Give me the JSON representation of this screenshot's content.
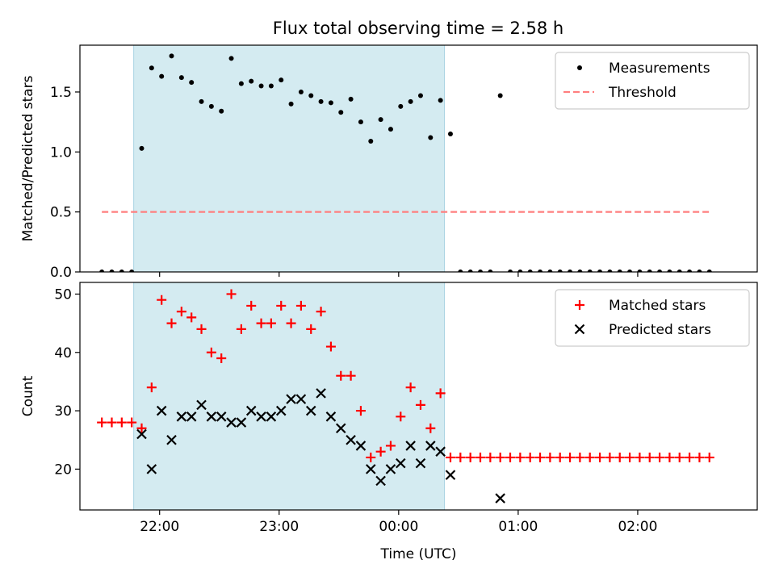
{
  "title": "Flux total observing time = 2.58 h",
  "colors": {
    "measurement": "#000000",
    "threshold": "#ff7f7f",
    "matched": "#ff0000",
    "predicted": "#000000",
    "span_fill": "#d4ebf1",
    "span_edge": "#a8d2e2"
  },
  "chart_data": [
    {
      "type": "scatter",
      "ylabel": "Matched/Predicted stars",
      "ylim": [
        0,
        1.89
      ],
      "yticks": [
        0.0,
        0.5,
        1.0,
        1.5
      ],
      "ytick_labels": [
        "0.0",
        "0.5",
        "1.0",
        "1.5"
      ],
      "xlim": [
        "21:20",
        "03:00"
      ],
      "xticks": [
        "22:00",
        "23:00",
        "00:00",
        "01:00",
        "02:00"
      ],
      "tick_labels_visible": false,
      "grid": false,
      "legend_position": "upper right",
      "legend": [
        "Measurements",
        "Threshold"
      ],
      "observing_span": [
        "21:47",
        "00:23"
      ],
      "threshold": {
        "value": 0.5,
        "x_range": [
          "21:31",
          "02:36"
        ]
      },
      "series": [
        {
          "name": "Measurements",
          "marker": "dot",
          "points": [
            [
              "21:31",
              0
            ],
            [
              "21:36",
              0
            ],
            [
              "21:41",
              0
            ],
            [
              "21:46",
              0
            ],
            [
              "21:51",
              1.03
            ],
            [
              "21:56",
              1.7
            ],
            [
              "22:01",
              1.63
            ],
            [
              "22:06",
              1.8
            ],
            [
              "22:11",
              1.62
            ],
            [
              "22:16",
              1.58
            ],
            [
              "22:21",
              1.42
            ],
            [
              "22:26",
              1.38
            ],
            [
              "22:31",
              1.34
            ],
            [
              "22:36",
              1.78
            ],
            [
              "22:41",
              1.57
            ],
            [
              "22:46",
              1.59
            ],
            [
              "22:51",
              1.55
            ],
            [
              "22:56",
              1.55
            ],
            [
              "23:01",
              1.6
            ],
            [
              "23:06",
              1.4
            ],
            [
              "23:11",
              1.5
            ],
            [
              "23:16",
              1.47
            ],
            [
              "23:21",
              1.42
            ],
            [
              "23:26",
              1.41
            ],
            [
              "23:31",
              1.33
            ],
            [
              "23:36",
              1.44
            ],
            [
              "23:41",
              1.25
            ],
            [
              "23:46",
              1.09
            ],
            [
              "23:51",
              1.27
            ],
            [
              "23:56",
              1.19
            ],
            [
              "00:01",
              1.38
            ],
            [
              "00:06",
              1.42
            ],
            [
              "00:11",
              1.47
            ],
            [
              "00:16",
              1.12
            ],
            [
              "00:21",
              1.43
            ],
            [
              "00:26",
              1.15
            ],
            [
              "00:31",
              0
            ],
            [
              "00:36",
              0
            ],
            [
              "00:41",
              0
            ],
            [
              "00:46",
              0
            ],
            [
              "00:51",
              1.47
            ],
            [
              "00:56",
              0
            ],
            [
              "01:01",
              0
            ],
            [
              "01:06",
              0
            ],
            [
              "01:11",
              0
            ],
            [
              "01:16",
              0
            ],
            [
              "01:21",
              0
            ],
            [
              "01:26",
              0
            ],
            [
              "01:31",
              0
            ],
            [
              "01:36",
              0
            ],
            [
              "01:41",
              0
            ],
            [
              "01:46",
              0
            ],
            [
              "01:51",
              0
            ],
            [
              "01:56",
              0
            ],
            [
              "02:01",
              0
            ],
            [
              "02:06",
              0
            ],
            [
              "02:11",
              0
            ],
            [
              "02:16",
              0
            ],
            [
              "02:21",
              0
            ],
            [
              "02:26",
              0
            ],
            [
              "02:31",
              0
            ],
            [
              "02:36",
              0
            ]
          ]
        }
      ]
    },
    {
      "type": "scatter",
      "xlabel": "Time (UTC)",
      "ylabel": "Count",
      "ylim": [
        13,
        52
      ],
      "yticks": [
        20,
        30,
        40,
        50
      ],
      "ytick_labels": [
        "20",
        "30",
        "40",
        "50"
      ],
      "xlim": [
        "21:20",
        "03:00"
      ],
      "xticks": [
        "22:00",
        "23:00",
        "00:00",
        "01:00",
        "02:00"
      ],
      "xtick_labels": [
        "22:00",
        "23:00",
        "00:00",
        "01:00",
        "02:00"
      ],
      "grid": false,
      "legend_position": "upper right",
      "legend": [
        "Matched stars",
        "Predicted stars"
      ],
      "observing_span": [
        "21:47",
        "00:23"
      ],
      "series": [
        {
          "name": "Matched stars",
          "marker": "plus",
          "points": [
            [
              "21:31",
              28
            ],
            [
              "21:36",
              28
            ],
            [
              "21:41",
              28
            ],
            [
              "21:46",
              28
            ],
            [
              "21:51",
              27
            ],
            [
              "21:56",
              34
            ],
            [
              "22:01",
              49
            ],
            [
              "22:06",
              45
            ],
            [
              "22:11",
              47
            ],
            [
              "22:16",
              46
            ],
            [
              "22:21",
              44
            ],
            [
              "22:26",
              40
            ],
            [
              "22:31",
              39
            ],
            [
              "22:36",
              50
            ],
            [
              "22:41",
              44
            ],
            [
              "22:46",
              48
            ],
            [
              "22:51",
              45
            ],
            [
              "22:56",
              45
            ],
            [
              "23:01",
              48
            ],
            [
              "23:06",
              45
            ],
            [
              "23:11",
              48
            ],
            [
              "23:16",
              44
            ],
            [
              "23:21",
              47
            ],
            [
              "23:26",
              41
            ],
            [
              "23:31",
              36
            ],
            [
              "23:36",
              36
            ],
            [
              "23:41",
              30
            ],
            [
              "23:46",
              22
            ],
            [
              "23:51",
              23
            ],
            [
              "23:56",
              24
            ],
            [
              "00:01",
              29
            ],
            [
              "00:06",
              34
            ],
            [
              "00:11",
              31
            ],
            [
              "00:16",
              27
            ],
            [
              "00:21",
              33
            ],
            [
              "00:26",
              22
            ],
            [
              "00:31",
              22
            ],
            [
              "00:36",
              22
            ],
            [
              "00:41",
              22
            ],
            [
              "00:46",
              22
            ],
            [
              "00:51",
              22
            ],
            [
              "00:56",
              22
            ],
            [
              "01:01",
              22
            ],
            [
              "01:06",
              22
            ],
            [
              "01:11",
              22
            ],
            [
              "01:16",
              22
            ],
            [
              "01:21",
              22
            ],
            [
              "01:26",
              22
            ],
            [
              "01:31",
              22
            ],
            [
              "01:36",
              22
            ],
            [
              "01:41",
              22
            ],
            [
              "01:46",
              22
            ],
            [
              "01:51",
              22
            ],
            [
              "01:56",
              22
            ],
            [
              "02:01",
              22
            ],
            [
              "02:06",
              22
            ],
            [
              "02:11",
              22
            ],
            [
              "02:16",
              22
            ],
            [
              "02:21",
              22
            ],
            [
              "02:26",
              22
            ],
            [
              "02:31",
              22
            ],
            [
              "02:36",
              22
            ]
          ]
        },
        {
          "name": "Predicted stars",
          "marker": "x",
          "points": [
            [
              "21:51",
              26
            ],
            [
              "21:56",
              20
            ],
            [
              "22:01",
              30
            ],
            [
              "22:06",
              25
            ],
            [
              "22:11",
              29
            ],
            [
              "22:16",
              29
            ],
            [
              "22:21",
              31
            ],
            [
              "22:26",
              29
            ],
            [
              "22:31",
              29
            ],
            [
              "22:36",
              28
            ],
            [
              "22:41",
              28
            ],
            [
              "22:46",
              30
            ],
            [
              "22:51",
              29
            ],
            [
              "22:56",
              29
            ],
            [
              "23:01",
              30
            ],
            [
              "23:06",
              32
            ],
            [
              "23:11",
              32
            ],
            [
              "23:16",
              30
            ],
            [
              "23:21",
              33
            ],
            [
              "23:26",
              29
            ],
            [
              "23:31",
              27
            ],
            [
              "23:36",
              25
            ],
            [
              "23:41",
              24
            ],
            [
              "23:46",
              20
            ],
            [
              "23:51",
              18
            ],
            [
              "23:56",
              20
            ],
            [
              "00:01",
              21
            ],
            [
              "00:06",
              24
            ],
            [
              "00:11",
              21
            ],
            [
              "00:16",
              24
            ],
            [
              "00:21",
              23
            ],
            [
              "00:26",
              19
            ],
            [
              "00:51",
              15
            ]
          ]
        }
      ]
    }
  ]
}
